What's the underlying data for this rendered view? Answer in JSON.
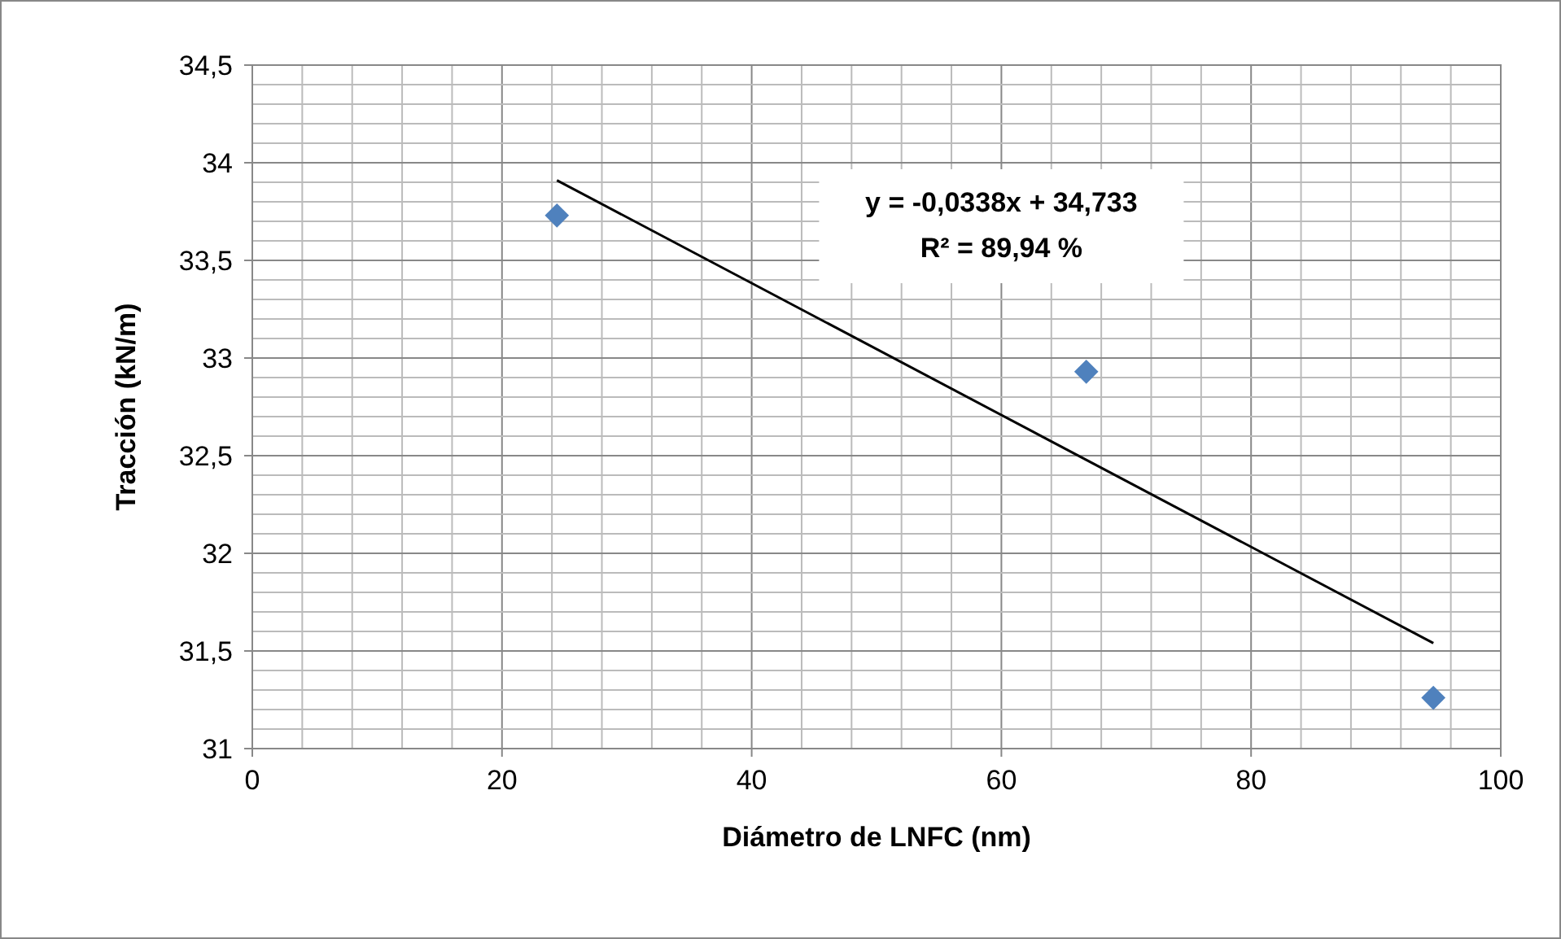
{
  "chart_data": {
    "type": "scatter",
    "xlabel": "Diámetro de LNFC (nm)",
    "ylabel": "Tracción (kN/m)",
    "annotations": [
      "y = -0,0338x + 34,733",
      "R² = 89,94 %"
    ],
    "xlim": [
      0,
      100
    ],
    "ylim": [
      31,
      34.5
    ],
    "xticks": [
      0,
      {
        "value": 4,
        "label": null
      },
      {
        "value": 8,
        "label": null
      },
      {
        "value": 12,
        "label": null
      },
      {
        "value": 16,
        "label": null
      },
      20,
      {
        "value": 24,
        "label": null
      },
      {
        "value": 28,
        "label": null
      },
      {
        "value": 32,
        "label": null
      },
      {
        "value": 36,
        "label": null
      },
      40,
      {
        "value": 44,
        "label": null
      },
      {
        "value": 48,
        "label": null
      },
      {
        "value": 52,
        "label": null
      },
      {
        "value": 56,
        "label": null
      },
      60,
      {
        "value": 64,
        "label": null
      },
      {
        "value": 68,
        "label": null
      },
      {
        "value": 72,
        "label": null
      },
      {
        "value": 76,
        "label": null
      },
      80,
      {
        "value": 84,
        "label": null
      },
      {
        "value": 88,
        "label": null
      },
      {
        "value": 92,
        "label": null
      },
      {
        "value": 96,
        "label": null
      },
      100
    ],
    "yticks": [
      31,
      {
        "value": 31.1,
        "label": null
      },
      {
        "value": 31.2,
        "label": null
      },
      {
        "value": 31.3,
        "label": null
      },
      {
        "value": 31.4,
        "label": null
      },
      {
        "value": 31.5,
        "label": "31,5"
      },
      {
        "value": 31.6,
        "label": null
      },
      {
        "value": 31.7,
        "label": null
      },
      {
        "value": 31.8,
        "label": null
      },
      {
        "value": 31.9,
        "label": null
      },
      32,
      {
        "value": 32.1,
        "label": null
      },
      {
        "value": 32.2,
        "label": null
      },
      {
        "value": 32.3,
        "label": null
      },
      {
        "value": 32.4,
        "label": null
      },
      {
        "value": 32.5,
        "label": "32,5"
      },
      {
        "value": 32.6,
        "label": null
      },
      {
        "value": 32.7,
        "label": null
      },
      {
        "value": 32.8,
        "label": null
      },
      {
        "value": 32.9,
        "label": null
      },
      33,
      {
        "value": 33.1,
        "label": null
      },
      {
        "value": 33.2,
        "label": null
      },
      {
        "value": 33.3,
        "label": null
      },
      {
        "value": 33.4,
        "label": null
      },
      {
        "value": 33.5,
        "label": "33,5"
      },
      {
        "value": 33.6,
        "label": null
      },
      {
        "value": 33.7,
        "label": null
      },
      {
        "value": 33.8,
        "label": null
      },
      {
        "value": 33.9,
        "label": null
      },
      34,
      {
        "value": 34.1,
        "label": null
      },
      {
        "value": 34.2,
        "label": null
      },
      {
        "value": 34.3,
        "label": null
      },
      {
        "value": 34.4,
        "label": null
      },
      {
        "value": 34.5,
        "label": "34,5"
      }
    ],
    "grid": true,
    "marker": "diamond",
    "series": [
      {
        "color": "#4f81bd",
        "x": [
          24.4,
          66.8,
          94.6
        ],
        "values": [
          33.73,
          32.93,
          31.26
        ]
      },
      {
        "type": "line",
        "marker": "none",
        "color": "#000000",
        "x": [
          24.4,
          94.6
        ],
        "values": [
          33.91,
          31.54
        ]
      }
    ]
  }
}
